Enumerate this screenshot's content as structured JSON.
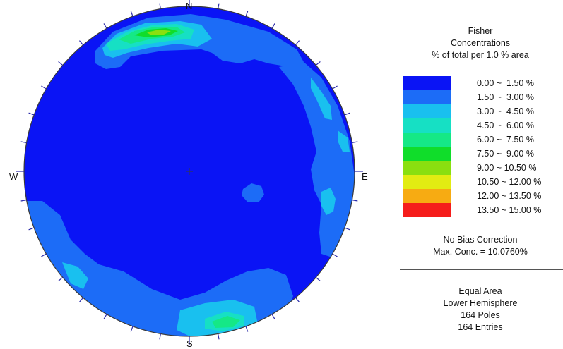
{
  "stereonet": {
    "directions": {
      "north": "N",
      "south": "S",
      "east": "E",
      "west": "W"
    },
    "background_color": "#0a14f5",
    "tick_color": "#2a2aa8"
  },
  "legend": {
    "title_lines": [
      "Fisher",
      "Concentrations",
      "% of total per 1.0 % area"
    ],
    "bins": [
      {
        "label": "0.00 ~  1.50 %",
        "color": "#0a14f5"
      },
      {
        "label": "1.50 ~  3.00 %",
        "color": "#1c6cf7"
      },
      {
        "label": "3.00 ~  4.50 %",
        "color": "#19c0ef"
      },
      {
        "label": "4.50 ~  6.00 %",
        "color": "#16e0c4"
      },
      {
        "label": "6.00 ~  7.50 %",
        "color": "#15e886"
      },
      {
        "label": "7.50 ~  9.00 %",
        "color": "#10dd2a"
      },
      {
        "label": "9.00 ~ 10.50 %",
        "color": "#8adf10"
      },
      {
        "label": "10.50 ~ 12.00 %",
        "color": "#e2ec12"
      },
      {
        "label": "12.00 ~ 13.50 %",
        "color": "#f7ab12"
      },
      {
        "label": "13.50 ~ 15.00 %",
        "color": "#f51d1b"
      }
    ],
    "bias_correction": "No Bias Correction",
    "max_concentration": "Max. Conc. = 10.0760%",
    "info_lines": [
      "Equal Area",
      "Lower Hemisphere",
      "164 Poles",
      "164 Entries"
    ]
  }
}
